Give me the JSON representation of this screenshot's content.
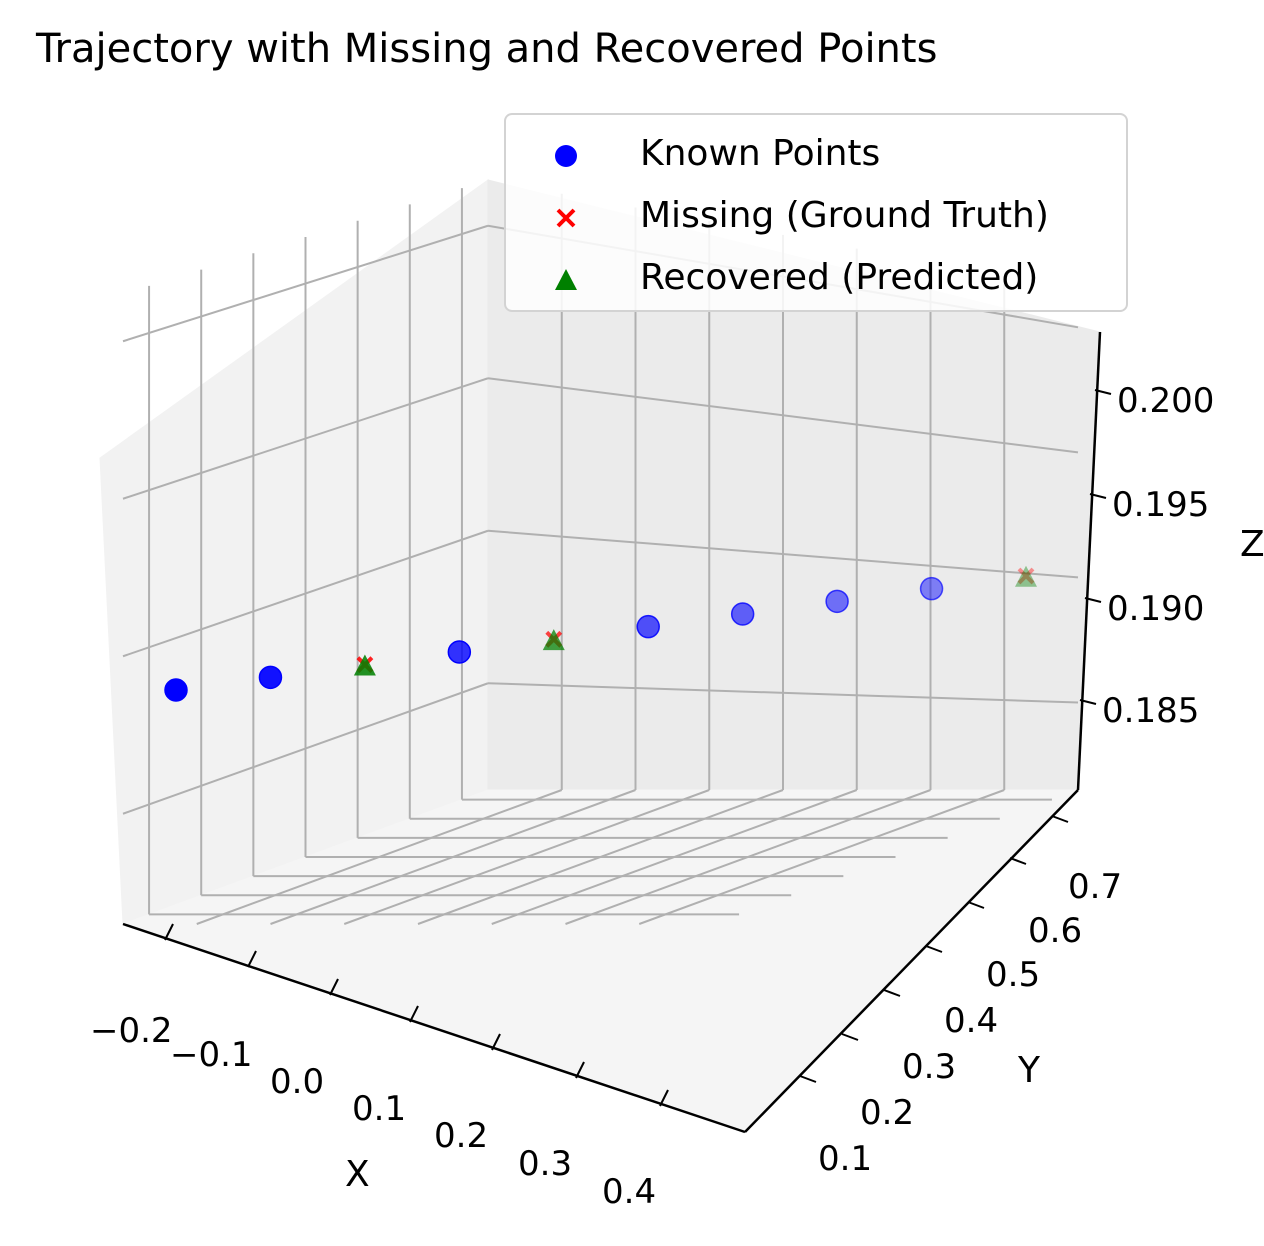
{
  "chart_data": {
    "type": "scatter",
    "title": "Trajectory with Missing and Recovered Points",
    "xlabel": "X",
    "ylabel": "Y",
    "zlabel": "Z",
    "x_ticks": [
      "−0.2",
      "−0.1",
      "0.0",
      "0.1",
      "0.2",
      "0.3",
      "0.4"
    ],
    "y_ticks": [
      "0.1",
      "0.2",
      "0.3",
      "0.4",
      "0.5",
      "0.6",
      "0.7"
    ],
    "z_ticks": [
      "0.185",
      "0.190",
      "0.195",
      "0.200"
    ],
    "legend_position": "top-right",
    "grid": true,
    "series": [
      {
        "name": "Known Points",
        "marker": "circle",
        "color": "#0000ff",
        "points": [
          {
            "x": -0.21,
            "y": 0.05,
            "z": 0.1855
          },
          {
            "x": -0.16,
            "y": 0.1,
            "z": 0.186
          },
          {
            "x": -0.06,
            "y": 0.2,
            "z": 0.187
          },
          {
            "x": 0.04,
            "y": 0.3,
            "z": 0.188
          },
          {
            "x": 0.09,
            "y": 0.35,
            "z": 0.1885
          },
          {
            "x": 0.14,
            "y": 0.4,
            "z": 0.189
          },
          {
            "x": 0.19,
            "y": 0.45,
            "z": 0.1895
          }
        ]
      },
      {
        "name": "Missing (Ground Truth)",
        "marker": "x",
        "color": "#ff0000",
        "points": [
          {
            "x": -0.11,
            "y": 0.15,
            "z": 0.1865
          },
          {
            "x": -0.01,
            "y": 0.25,
            "z": 0.1875
          },
          {
            "x": 0.24,
            "y": 0.5,
            "z": 0.19
          }
        ]
      },
      {
        "name": "Recovered (Predicted)",
        "marker": "triangle",
        "color": "#008000",
        "points": [
          {
            "x": -0.11,
            "y": 0.15,
            "z": 0.1864
          },
          {
            "x": -0.01,
            "y": 0.25,
            "z": 0.1874
          },
          {
            "x": 0.24,
            "y": 0.5,
            "z": 0.1899
          }
        ]
      }
    ]
  }
}
